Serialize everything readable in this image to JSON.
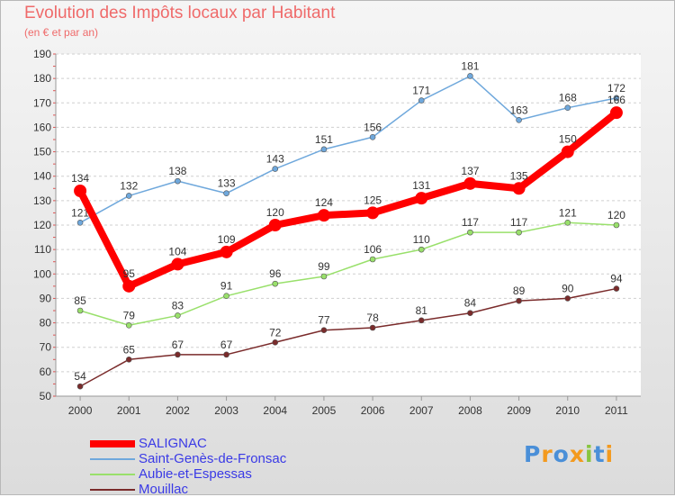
{
  "title": "Evolution des Impôts locaux par Habitant",
  "subtitle": "(en € et par an)",
  "chart_data": {
    "type": "line",
    "title": "Evolution des Impôts locaux par Habitant",
    "subtitle": "(en € et par an)",
    "xlabel": "",
    "ylabel": "",
    "x": [
      "2000",
      "2001",
      "2002",
      "2003",
      "2004",
      "2005",
      "2006",
      "2007",
      "2008",
      "2009",
      "2010",
      "2011"
    ],
    "yticks": [
      "50",
      "60",
      "70",
      "80",
      "90",
      "100",
      "110",
      "120",
      "130",
      "140",
      "150",
      "160",
      "170",
      "180",
      "190"
    ],
    "ylim": [
      50,
      190
    ],
    "grid": "horizontal dashed",
    "legend_position": "bottom-left",
    "series": [
      {
        "name": "SALIGNAC",
        "color": "#ff0000",
        "values": [
          134,
          95,
          104,
          109,
          120,
          124,
          125,
          131,
          137,
          135,
          150,
          166
        ]
      },
      {
        "name": "Saint-Genès-de-Fronsac",
        "color": "#6fa8dc",
        "values": [
          121,
          132,
          138,
          133,
          143,
          151,
          156,
          171,
          181,
          163,
          168,
          172
        ]
      },
      {
        "name": "Aubie-et-Espessas",
        "color": "#99e06b",
        "values": [
          85,
          79,
          83,
          91,
          96,
          99,
          106,
          110,
          117,
          117,
          121,
          120
        ]
      },
      {
        "name": "Mouillac",
        "color": "#7a2b2b",
        "values": [
          54,
          65,
          67,
          67,
          72,
          77,
          78,
          81,
          84,
          89,
          90,
          94
        ]
      }
    ]
  },
  "legend": {
    "items": [
      {
        "label": "SALIGNAC",
        "color": "#ff0000"
      },
      {
        "label": "Saint-Genès-de-Fronsac",
        "color": "#6fa8dc"
      },
      {
        "label": "Aubie-et-Espessas",
        "color": "#99e06b"
      },
      {
        "label": "Mouillac",
        "color": "#7a2b2b"
      }
    ]
  },
  "logo": {
    "text": "Proxiti",
    "letter_colors": [
      "#4a8fd8",
      "#f39a1e",
      "#4a8fd8",
      "#f39a1e",
      "#88c540",
      "#4a8fd8",
      "#f39a1e"
    ]
  }
}
